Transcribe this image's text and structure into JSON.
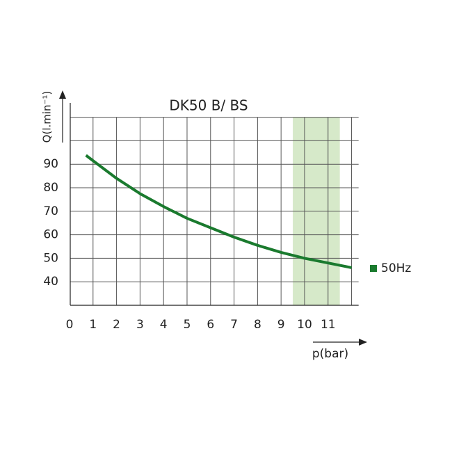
{
  "chart_data": {
    "type": "line",
    "title": "DK50 B/ BS",
    "x_label": "p(bar)",
    "y_label": "Q(l.min⁻¹)",
    "x": [
      0.7,
      1,
      2,
      3,
      4,
      5,
      6,
      7,
      8,
      9,
      10,
      11,
      12
    ],
    "series": [
      {
        "name": "50Hz",
        "color": "#1a7a2e",
        "values": [
          93.8,
          91.5,
          84,
          77.5,
          72,
          67,
          63,
          59,
          55.5,
          52.5,
          50,
          48,
          46
        ]
      }
    ],
    "xlim": [
      0,
      12.3
    ],
    "ylim": [
      30,
      110
    ],
    "xticks": [
      0,
      1,
      2,
      3,
      4,
      5,
      6,
      7,
      8,
      9,
      10,
      11
    ],
    "yticks": [
      40,
      50,
      60,
      70,
      80,
      90
    ],
    "xgrid": [
      1,
      2,
      3,
      4,
      5,
      6,
      7,
      8,
      9,
      10,
      11,
      12
    ],
    "ygrid": [
      40,
      50,
      60,
      70,
      80,
      90,
      100,
      110
    ],
    "highlight": {
      "x": [
        9.5,
        11.5
      ],
      "color": "#d6e9c9"
    },
    "legend": "right"
  }
}
